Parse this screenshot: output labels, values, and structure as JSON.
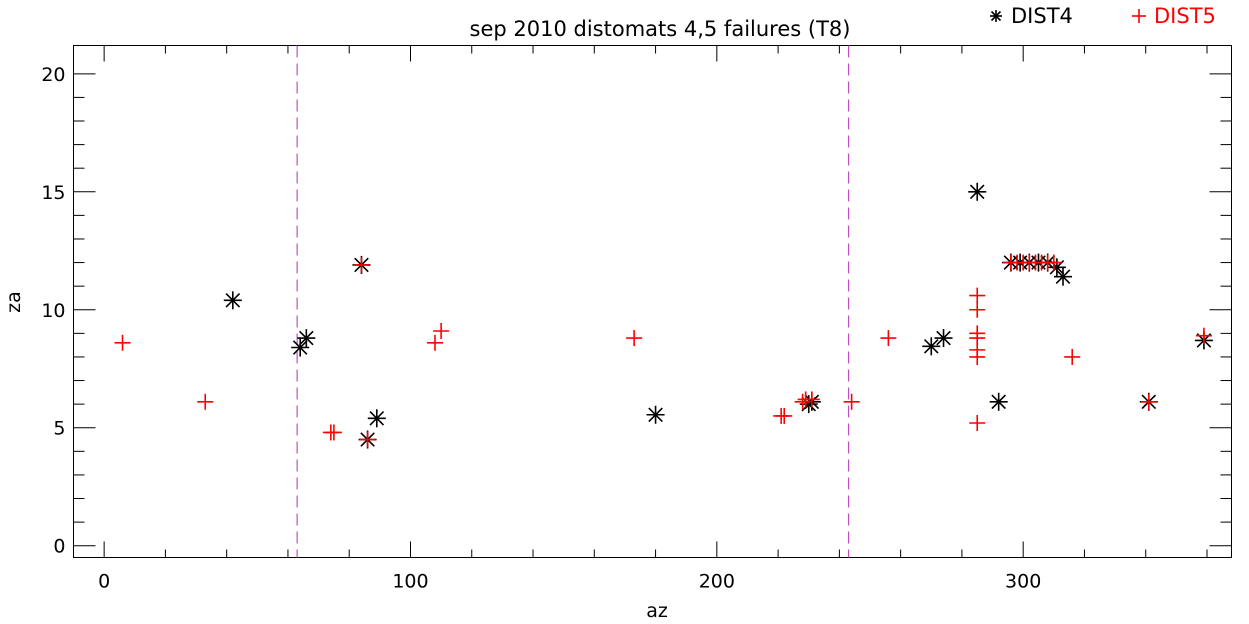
{
  "chart_data": {
    "type": "scatter",
    "title": "sep 2010  distomats 4,5 failures (T8)",
    "xlabel": "az",
    "ylabel": "za",
    "xlim": [
      -10,
      368
    ],
    "ylim": [
      -0.5,
      21.2
    ],
    "xticks": [
      0,
      100,
      200,
      300
    ],
    "yticks": [
      0,
      5,
      10,
      15,
      20
    ],
    "xminor": [
      20,
      40,
      60,
      80,
      120,
      140,
      160,
      180,
      220,
      240,
      260,
      280,
      320,
      340,
      360
    ],
    "yminor": [
      1,
      2,
      3,
      4,
      6,
      7,
      8,
      9,
      11,
      12,
      13,
      14,
      16,
      17,
      18,
      19
    ],
    "vlines": [
      {
        "x": 63,
        "color": "#c050c0",
        "style": "dashed"
      },
      {
        "x": 243,
        "color": "#c050c0",
        "style": "dashed"
      }
    ],
    "legend_position": "top-right",
    "series": [
      {
        "name": "DIST4",
        "marker": "asterisk",
        "color": "#000000",
        "points": [
          [
            42,
            10.4
          ],
          [
            64,
            8.4
          ],
          [
            66,
            8.8
          ],
          [
            84,
            11.9
          ],
          [
            86,
            4.5
          ],
          [
            89,
            5.4
          ],
          [
            180,
            5.55
          ],
          [
            230,
            6.0
          ],
          [
            231,
            6.1
          ],
          [
            270,
            8.45
          ],
          [
            274,
            8.8
          ],
          [
            285,
            15.0
          ],
          [
            292,
            6.1
          ],
          [
            296,
            12.0
          ],
          [
            299,
            12.0
          ],
          [
            302,
            12.0
          ],
          [
            305,
            12.0
          ],
          [
            308,
            12.0
          ],
          [
            311,
            11.8
          ],
          [
            313,
            11.4
          ],
          [
            341,
            6.1
          ],
          [
            359,
            8.7
          ]
        ]
      },
      {
        "name": "DIST5",
        "marker": "plus",
        "color": "#ff0000",
        "points": [
          [
            6,
            8.6
          ],
          [
            33,
            6.1
          ],
          [
            74,
            4.8
          ],
          [
            75,
            4.8
          ],
          [
            84,
            11.9
          ],
          [
            86,
            4.5
          ],
          [
            108,
            8.6
          ],
          [
            110,
            9.1
          ],
          [
            173,
            8.8
          ],
          [
            221,
            5.5
          ],
          [
            222,
            5.5
          ],
          [
            228,
            6.1
          ],
          [
            229,
            6.2
          ],
          [
            231,
            6.2
          ],
          [
            244,
            6.1
          ],
          [
            256,
            8.8
          ],
          [
            285,
            10.6
          ],
          [
            285,
            10.0
          ],
          [
            285,
            9.0
          ],
          [
            285,
            8.8
          ],
          [
            285,
            8.3
          ],
          [
            285,
            8.0
          ],
          [
            285,
            5.2
          ],
          [
            296,
            12.0
          ],
          [
            298,
            12.0
          ],
          [
            300,
            12.0
          ],
          [
            302,
            12.0
          ],
          [
            304,
            12.0
          ],
          [
            306,
            12.0
          ],
          [
            308,
            12.0
          ],
          [
            310,
            12.0
          ],
          [
            316,
            8.0
          ],
          [
            341,
            6.1
          ],
          [
            359,
            8.9
          ]
        ]
      }
    ]
  }
}
